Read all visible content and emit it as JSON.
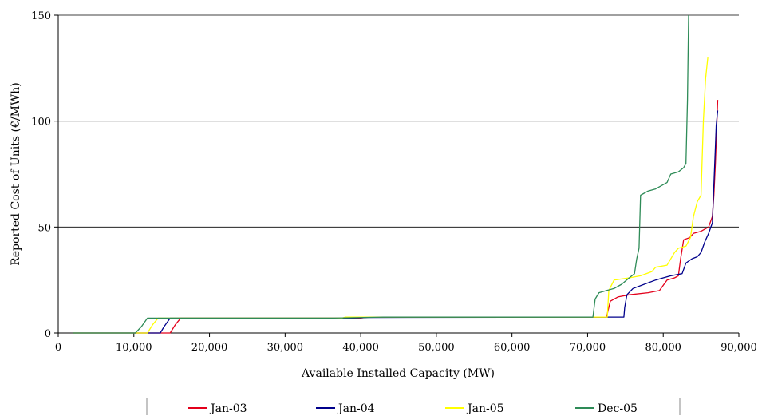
{
  "chart_data": {
    "type": "line",
    "xlabel": "Available Installed Capacity (MW)",
    "ylabel": "Reported Cost of Units (€/MWh)",
    "xlim": [
      0,
      90000
    ],
    "ylim": [
      0,
      150
    ],
    "x_ticks": [
      0,
      10000,
      20000,
      30000,
      40000,
      50000,
      60000,
      70000,
      80000,
      90000
    ],
    "x_tick_labels": [
      "0",
      "10,000",
      "20,000",
      "30,000",
      "40,000",
      "50,000",
      "60,000",
      "70,000",
      "80,000",
      "90,000"
    ],
    "y_ticks": [
      0,
      50,
      100,
      150
    ],
    "y_tick_labels": [
      "0",
      "50",
      "100",
      "150"
    ],
    "grid": "horizontal",
    "legend_position": "bottom",
    "series": [
      {
        "name": "Jan-03",
        "color": "#e3001b",
        "points": [
          [
            2000,
            0
          ],
          [
            14800,
            0
          ],
          [
            15500,
            4
          ],
          [
            16200,
            7
          ],
          [
            40000,
            7
          ],
          [
            41000,
            7.5
          ],
          [
            72500,
            7.5
          ],
          [
            72800,
            12
          ],
          [
            73000,
            15
          ],
          [
            74000,
            17
          ],
          [
            75500,
            18
          ],
          [
            78000,
            19
          ],
          [
            79500,
            20
          ],
          [
            80500,
            25
          ],
          [
            81500,
            26
          ],
          [
            82000,
            27
          ],
          [
            82300,
            35
          ],
          [
            82700,
            44
          ],
          [
            83500,
            45
          ],
          [
            84000,
            47
          ],
          [
            85000,
            48
          ],
          [
            86000,
            50
          ],
          [
            86500,
            55
          ],
          [
            86700,
            65
          ],
          [
            86900,
            80
          ],
          [
            87100,
            100
          ],
          [
            87200,
            110
          ]
        ]
      },
      {
        "name": "Jan-04",
        "color": "#00008b",
        "points": [
          [
            2000,
            0
          ],
          [
            13500,
            0
          ],
          [
            14000,
            3
          ],
          [
            14800,
            7
          ],
          [
            39000,
            7
          ],
          [
            41000,
            7.3
          ],
          [
            74800,
            7.5
          ],
          [
            74900,
            12
          ],
          [
            75200,
            18
          ],
          [
            76000,
            21
          ],
          [
            77500,
            23
          ],
          [
            79000,
            25
          ],
          [
            80000,
            26
          ],
          [
            81000,
            27
          ],
          [
            82500,
            28
          ],
          [
            83000,
            33
          ],
          [
            83800,
            35
          ],
          [
            84500,
            36
          ],
          [
            85000,
            38
          ],
          [
            85500,
            43
          ],
          [
            86000,
            47
          ],
          [
            86500,
            52
          ],
          [
            86700,
            70
          ],
          [
            86900,
            88
          ],
          [
            87000,
            98
          ],
          [
            87200,
            105
          ]
        ]
      },
      {
        "name": "Jan-05",
        "color": "#ffff00",
        "points": [
          [
            2000,
            0
          ],
          [
            11800,
            0
          ],
          [
            12500,
            4
          ],
          [
            13200,
            7
          ],
          [
            37500,
            7
          ],
          [
            38000,
            7.5
          ],
          [
            72600,
            7.5
          ],
          [
            72800,
            20
          ],
          [
            73500,
            25
          ],
          [
            75500,
            26
          ],
          [
            77000,
            27
          ],
          [
            78500,
            29
          ],
          [
            79000,
            31
          ],
          [
            80500,
            32
          ],
          [
            81500,
            38
          ],
          [
            82000,
            40
          ],
          [
            83000,
            41
          ],
          [
            83600,
            45
          ],
          [
            84000,
            55
          ],
          [
            84500,
            62
          ],
          [
            85000,
            65
          ],
          [
            85300,
            100
          ],
          [
            85600,
            120
          ],
          [
            85900,
            130
          ]
        ]
      },
      {
        "name": "Dec-05",
        "color": "#2e8b57",
        "points": [
          [
            2000,
            0
          ],
          [
            10200,
            0
          ],
          [
            11000,
            3
          ],
          [
            11800,
            7
          ],
          [
            36500,
            7
          ],
          [
            43000,
            7.5
          ],
          [
            70700,
            7.5
          ],
          [
            71000,
            16
          ],
          [
            71500,
            19
          ],
          [
            72500,
            20
          ],
          [
            73500,
            21
          ],
          [
            74500,
            23
          ],
          [
            75500,
            26
          ],
          [
            76200,
            28
          ],
          [
            76500,
            35
          ],
          [
            76800,
            40
          ],
          [
            77000,
            65
          ],
          [
            78000,
            67
          ],
          [
            79000,
            68
          ],
          [
            80500,
            71
          ],
          [
            81000,
            75
          ],
          [
            82000,
            76
          ],
          [
            82700,
            78
          ],
          [
            83000,
            80
          ],
          [
            83200,
            110
          ],
          [
            83350,
            150
          ]
        ]
      }
    ]
  }
}
